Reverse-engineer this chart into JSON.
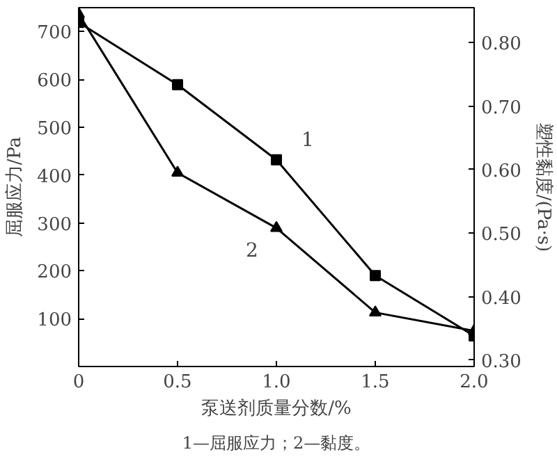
{
  "chart_data": {
    "type": "line",
    "xlabel": "泵送剂质量分数/%",
    "ylabel": "屈服应力/Pa",
    "y2label": "塑性黏度/(Pa·s)",
    "x": [
      0,
      0.5,
      1.0,
      1.5,
      2.0
    ],
    "series": [
      {
        "color": "#000000",
        "marker": "square",
        "values": [
          719,
          589,
          432,
          190,
          64
        ]
      },
      {
        "color": "#000000",
        "marker": "triangle",
        "axis": "y2",
        "values": [
          0.845,
          0.595,
          0.508,
          0.375,
          0.346
        ]
      }
    ],
    "xlim": [
      0,
      2.0
    ],
    "xticks": [
      0,
      0.5,
      {
        "value": 1.0,
        "label": "1.0"
      },
      1.5,
      {
        "value": 2.0,
        "label": "2.0"
      }
    ],
    "ylim": [
      0,
      750
    ],
    "yticks": [
      100,
      200,
      300,
      400,
      500,
      600,
      700
    ],
    "y2lim": [
      0.29,
      0.855
    ],
    "y2ticks": [
      {
        "value": 0.3,
        "label": "0.30"
      },
      {
        "value": 0.4,
        "label": "0.40"
      },
      {
        "value": 0.5,
        "label": "0.50"
      },
      {
        "value": 0.6,
        "label": "0.60"
      },
      {
        "value": 0.7,
        "label": "0.70"
      },
      {
        "value": 0.8,
        "label": "0.80"
      }
    ],
    "annotations": [
      {
        "text": "1",
        "x": 1.0,
        "y": 432
      },
      {
        "text": "2",
        "x": 1.0,
        "y": 293
      },
      "1—屈服应力；2—黏度。"
    ],
    "grid": false,
    "line_style": "solid"
  }
}
